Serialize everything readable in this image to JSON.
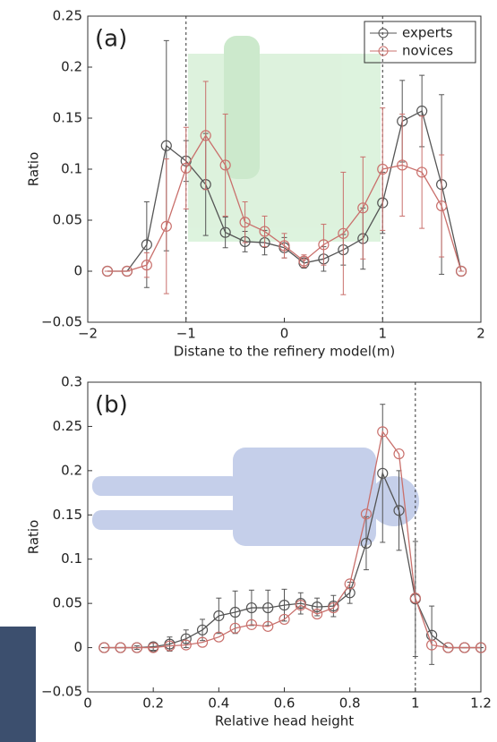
{
  "chart_data": [
    {
      "type": "line",
      "annotation": "(a)",
      "xlabel": "Distane to the refinery model(m)",
      "ylabel": "Ratio",
      "x": [
        -1.8,
        -1.6,
        -1.4,
        -1.2,
        -1.0,
        -0.8,
        -0.6,
        -0.4,
        -0.2,
        0,
        0.2,
        0.4,
        0.6,
        0.8,
        1.0,
        1.2,
        1.4,
        1.6,
        1.8
      ],
      "series": [
        {
          "name": "experts",
          "color": "#555555",
          "values": [
            0,
            0,
            0.026,
            0.123,
            0.108,
            0.085,
            0.038,
            0.029,
            0.028,
            0.023,
            0.008,
            0.012,
            0.021,
            0.032,
            0.067,
            0.147,
            0.157,
            0.085,
            0
          ],
          "errors": [
            0,
            0,
            0.042,
            0.103,
            0.02,
            0.05,
            0.015,
            0.01,
            0.012,
            0.01,
            0.005,
            0.012,
            0.015,
            0.03,
            0.03,
            0.04,
            0.035,
            0.088,
            0
          ]
        },
        {
          "name": "novices",
          "color": "#c9706c",
          "values": [
            0,
            0,
            0.006,
            0.044,
            0.101,
            0.133,
            0.104,
            0.048,
            0.039,
            0.025,
            0.01,
            0.026,
            0.037,
            0.062,
            0.1,
            0.104,
            0.097,
            0.064,
            0
          ],
          "errors": [
            0,
            0,
            0.012,
            0.066,
            0.04,
            0.053,
            0.05,
            0.02,
            0.015,
            0.012,
            0.006,
            0.02,
            0.06,
            0.05,
            0.06,
            0.05,
            0.055,
            0.05,
            0
          ]
        }
      ],
      "vlines": [
        -1,
        1
      ],
      "legend": "upper right",
      "xlim": [
        -2,
        2
      ],
      "xticks": [
        {
          "value": -2,
          "label": "−2"
        },
        {
          "value": -1,
          "label": "−1"
        },
        0,
        1,
        2
      ],
      "ylim": [
        -0.05,
        0.25
      ],
      "yticks": [
        {
          "value": -0.05,
          "label": "−0.05"
        },
        0,
        0.05,
        0.1,
        0.15,
        0.2,
        0.25
      ]
    },
    {
      "type": "line",
      "annotation": "(b)",
      "xlabel": "Relative head height",
      "ylabel": "Ratio",
      "x": [
        0.05,
        0.1,
        0.15,
        0.2,
        0.25,
        0.3,
        0.35,
        0.4,
        0.45,
        0.5,
        0.55,
        0.6,
        0.65,
        0.7,
        0.75,
        0.8,
        0.85,
        0.9,
        0.95,
        1.0,
        1.05,
        1.1,
        1.15,
        1.2
      ],
      "series": [
        {
          "color": "#555555",
          "values": [
            0,
            0,
            0,
            0.001,
            0.004,
            0.01,
            0.02,
            0.036,
            0.04,
            0.045,
            0.045,
            0.048,
            0.05,
            0.046,
            0.047,
            0.062,
            0.118,
            0.197,
            0.155,
            0.055,
            0.014,
            0,
            0,
            0
          ],
          "errors": [
            0,
            0,
            0.002,
            0.004,
            0.008,
            0.01,
            0.012,
            0.02,
            0.024,
            0.02,
            0.02,
            0.018,
            0.012,
            0.01,
            0.012,
            0.012,
            0.03,
            0.078,
            0.045,
            0.065,
            0.033,
            0,
            0,
            0
          ]
        },
        {
          "color": "#c9706c",
          "values": [
            0,
            0,
            0,
            0,
            0.002,
            0.003,
            0.006,
            0.012,
            0.022,
            0.026,
            0.024,
            0.032,
            0.048,
            0.038,
            0.045,
            0.072,
            0.151,
            0.244,
            0.219,
            0.056,
            0.003,
            0,
            0,
            0
          ]
        }
      ],
      "vlines": [
        1.0
      ],
      "xlim": [
        0,
        1.2
      ],
      "xticks": [
        0,
        0.2,
        0.4,
        0.6,
        0.8,
        1,
        1.2
      ],
      "ylim": [
        -0.05,
        0.3
      ],
      "yticks": [
        {
          "value": -0.05,
          "label": "−0.05"
        },
        0,
        0.05,
        0.1,
        0.15,
        0.2,
        0.25,
        0.3
      ]
    }
  ]
}
